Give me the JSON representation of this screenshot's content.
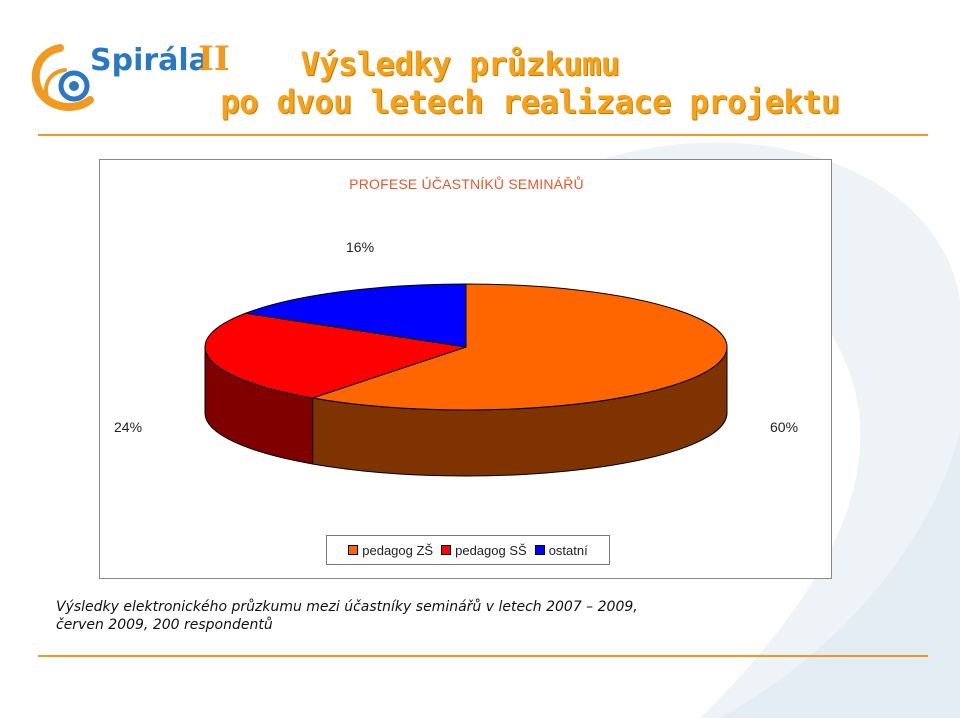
{
  "header": {
    "title_line1": "Výsledky průzkumu",
    "title_line2": "po dvou letech realizace projektu",
    "logo_text": "SPIRÁLA II"
  },
  "chart_data": {
    "type": "pie",
    "title": "PROFESE ÚČASTNÍKŮ SEMINÁŘŮ",
    "categories": [
      "pedagog ZŠ",
      "pedagog SŠ",
      "ostatní"
    ],
    "values": [
      60,
      24,
      16
    ],
    "labels": [
      "60%",
      "24%",
      "16%"
    ],
    "colors": [
      "#ff6600",
      "#ff0000",
      "#0000ff"
    ],
    "side_colors": [
      "#7f3300",
      "#800000",
      "#00007f"
    ],
    "legend_position": "bottom",
    "three_d": true
  },
  "caption": {
    "line1": "Výsledky elektronického průzkumu mezi účastníky seminářů v letech 2007 – 2009,",
    "line2": "červen 2009, 200 respondentů"
  },
  "colors": {
    "title": "#f5a21a",
    "accent_line": "#f29a1e",
    "chart_title": "#e8572a"
  }
}
